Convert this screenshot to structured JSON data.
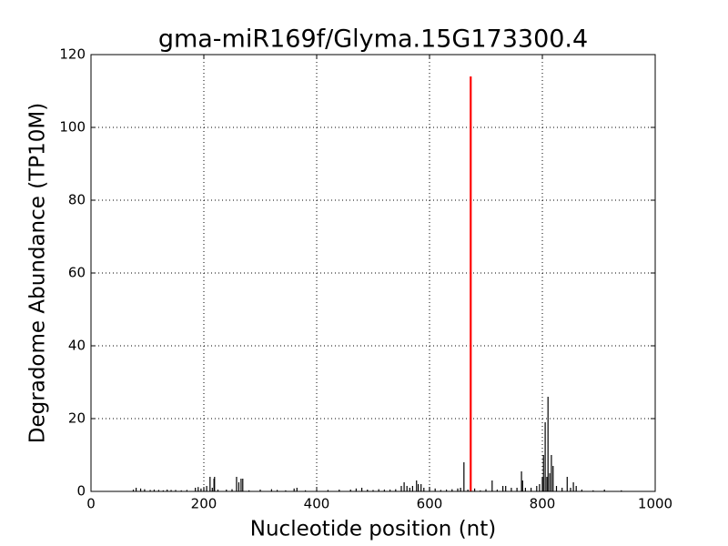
{
  "chart_data": {
    "type": "stem",
    "title": "gma-miR169f/Glyma.15G173300.4",
    "x_label": "Nucleotide position (nt)",
    "y_label": "Degradome Abundance (TP10M)",
    "xlim": [
      0,
      1000
    ],
    "xticks": [
      0,
      200,
      400,
      600,
      800,
      1000
    ],
    "ylim": [
      0,
      120
    ],
    "yticks": [
      0,
      20,
      40,
      60,
      80,
      100,
      120
    ],
    "grid": true,
    "series": [
      {
        "color": "#000000",
        "x": [
          75,
          80,
          88,
          95,
          105,
          112,
          120,
          128,
          135,
          142,
          150,
          160,
          170,
          185,
          190,
          195,
          200,
          205,
          211,
          215,
          218,
          219,
          225,
          240,
          250,
          258,
          262,
          266,
          269,
          280,
          300,
          320,
          330,
          345,
          360,
          365,
          380,
          400,
          420,
          440,
          460,
          470,
          480,
          490,
          500,
          510,
          520,
          530,
          540,
          550,
          555,
          560,
          565,
          570,
          577,
          580,
          585,
          590,
          600,
          610,
          620,
          630,
          640,
          650,
          655,
          661,
          668,
          680,
          690,
          700,
          711,
          720,
          730,
          735,
          745,
          755,
          763,
          765,
          770,
          780,
          790,
          795,
          800,
          802,
          805,
          808,
          810,
          813,
          816,
          819,
          825,
          835,
          844,
          850,
          855,
          860,
          870,
          890,
          910,
          940
        ],
        "values": [
          0.5,
          1,
          0.8,
          0.6,
          0.4,
          0.5,
          0.4,
          0.3,
          0.5,
          0.4,
          0.4,
          0.3,
          0.4,
          1,
          1.2,
          0.8,
          1,
          1.5,
          4,
          1,
          3.5,
          4,
          0.5,
          0.5,
          0.6,
          4,
          2.5,
          3.5,
          3.5,
          0.3,
          0.5,
          0.6,
          0.4,
          0.3,
          0.8,
          1,
          0.3,
          0.3,
          0.4,
          0.5,
          0.5,
          0.8,
          1,
          0.5,
          0.4,
          0.6,
          0.5,
          0.5,
          0.6,
          1.5,
          2.5,
          1.5,
          1,
          1.5,
          3,
          2,
          2,
          1,
          1.2,
          0.8,
          0.4,
          0.5,
          0.6,
          0.8,
          1,
          8,
          0.5,
          0.8,
          0.3,
          0.6,
          3,
          0.5,
          1.5,
          1.5,
          1,
          1,
          5.5,
          3,
          1,
          1,
          1.5,
          2,
          4,
          10,
          19,
          4,
          26,
          5,
          10,
          7,
          1.5,
          1,
          4,
          1,
          2.5,
          1.5,
          0.5,
          0.3,
          0.5,
          0.3
        ]
      },
      {
        "color": "#ff0000",
        "x": [
          673
        ],
        "values": [
          114
        ]
      }
    ]
  }
}
